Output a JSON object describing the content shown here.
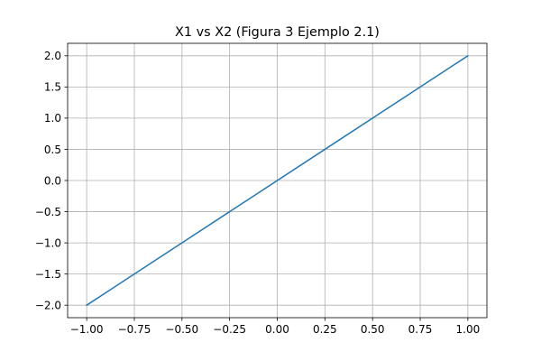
{
  "chart_data": {
    "type": "line",
    "title": "X1 vs X2 (Figura 3 Ejemplo 2.1)",
    "xlabel": "",
    "ylabel": "",
    "xlim": [
      -1.1,
      1.1
    ],
    "ylim": [
      -2.2,
      2.2
    ],
    "grid": true,
    "x_ticks": [
      -1.0,
      -0.75,
      -0.5,
      -0.25,
      0.0,
      0.25,
      0.5,
      0.75,
      1.0
    ],
    "x_tick_labels": [
      "−1.00",
      "−0.75",
      "−0.50",
      "−0.25",
      "0.00",
      "0.25",
      "0.50",
      "0.75",
      "1.00"
    ],
    "y_ticks": [
      -2.0,
      -1.5,
      -1.0,
      -0.5,
      0.0,
      0.5,
      1.0,
      1.5,
      2.0
    ],
    "y_tick_labels": [
      "−2.0",
      "−1.5",
      "−1.0",
      "−0.5",
      "0.0",
      "0.5",
      "1.0",
      "1.5",
      "2.0"
    ],
    "series": [
      {
        "color": "#1f77b4",
        "x": [
          -1.0,
          1.0,
          -1.0
        ],
        "y": [
          -2.0,
          2.0,
          -2.0
        ]
      }
    ]
  }
}
